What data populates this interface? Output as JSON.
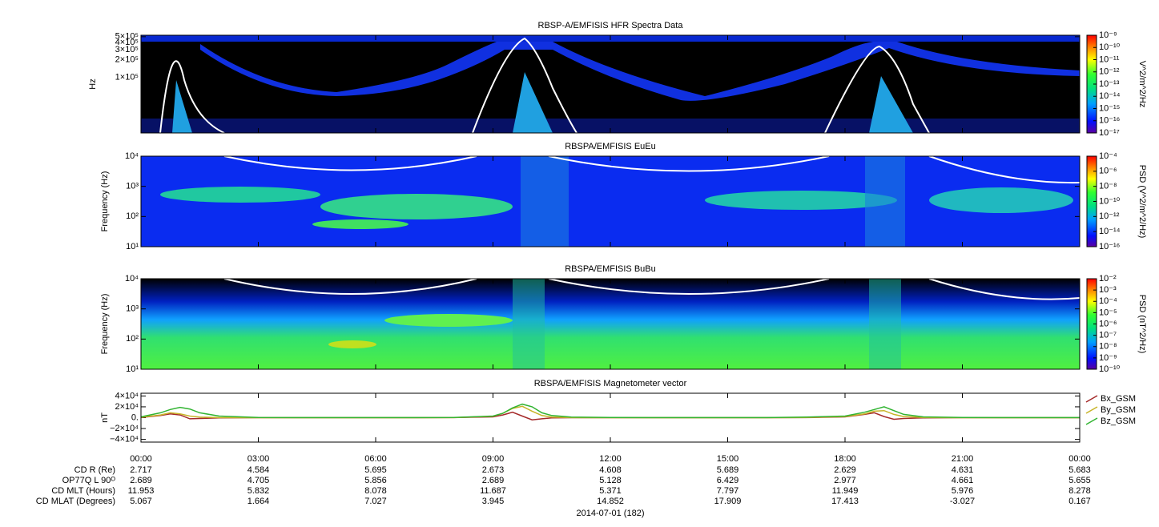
{
  "x_axis": {
    "xlim": [
      0,
      24
    ],
    "ticks": [
      {
        "value": 0,
        "label": "00:00"
      },
      {
        "value": 3,
        "label": "03:00"
      },
      {
        "value": 6,
        "label": "06:00"
      },
      {
        "value": 9,
        "label": "09:00"
      },
      {
        "value": 12,
        "label": "12:00"
      },
      {
        "value": 15,
        "label": "15:00"
      },
      {
        "value": 18,
        "label": "18:00"
      },
      {
        "value": 21,
        "label": "21:00"
      },
      {
        "value": 24,
        "label": "00:00"
      }
    ],
    "date_label": "2014-07-01 (182)"
  },
  "chart_data": [
    {
      "type": "spectrogram",
      "title": "RBSP-A/EMFISIS  HFR Spectra Data",
      "ylabel": "Hz",
      "log": true,
      "ylim": [
        11000,
        530000
      ],
      "yticks": [
        {
          "value": 100000,
          "label": "1×10⁵"
        },
        {
          "value": 200000,
          "label": "2×10⁵"
        },
        {
          "value": 300000,
          "label": "3×10⁵"
        },
        {
          "value": 400000,
          "label": "4×10⁵"
        },
        {
          "value": 500000,
          "label": "5×10⁵"
        }
      ],
      "colorbar": {
        "label": "V^2/m^2/Hz",
        "lim": [
          1e-17,
          1e-09
        ],
        "ticks": [
          {
            "value": 1e-17,
            "label": "10⁻¹⁷"
          },
          {
            "value": 1e-16,
            "label": "10⁻¹⁶"
          },
          {
            "value": 1e-15,
            "label": "10⁻¹⁵"
          },
          {
            "value": 1e-14,
            "label": "10⁻¹⁴"
          },
          {
            "value": 1e-13,
            "label": "10⁻¹³"
          },
          {
            "value": 1e-12,
            "label": "10⁻¹²"
          },
          {
            "value": 1e-11,
            "label": "10⁻¹¹"
          },
          {
            "value": 1e-10,
            "label": "10⁻¹⁰"
          },
          {
            "value": 1e-09,
            "label": "10⁻⁹"
          }
        ]
      }
    },
    {
      "type": "spectrogram",
      "title": "RBSPA/EMFISIS  EuEu",
      "ylabel": "Frequency (Hz)",
      "log": true,
      "ylim": [
        10,
        10000
      ],
      "yticks": [
        {
          "value": 10,
          "label": "10¹"
        },
        {
          "value": 100,
          "label": "10²"
        },
        {
          "value": 1000,
          "label": "10³"
        },
        {
          "value": 10000,
          "label": "10⁴"
        }
      ],
      "colorbar": {
        "label": "PSD (V^2/m^2/Hz)",
        "lim": [
          1e-16,
          0.0001
        ],
        "ticks": [
          {
            "value": 1e-16,
            "label": "10⁻¹⁶"
          },
          {
            "value": 1e-14,
            "label": "10⁻¹⁴"
          },
          {
            "value": 1e-12,
            "label": "10⁻¹²"
          },
          {
            "value": 1e-10,
            "label": "10⁻¹⁰"
          },
          {
            "value": 1e-08,
            "label": "10⁻⁸"
          },
          {
            "value": 1e-06,
            "label": "10⁻⁶"
          },
          {
            "value": 0.0001,
            "label": "10⁻⁴"
          }
        ]
      }
    },
    {
      "type": "spectrogram",
      "title": "RBSPA/EMFISIS  BuBu",
      "ylabel": "Frequency (Hz)",
      "log": true,
      "ylim": [
        10,
        10000
      ],
      "yticks": [
        {
          "value": 10,
          "label": "10¹"
        },
        {
          "value": 100,
          "label": "10²"
        },
        {
          "value": 1000,
          "label": "10³"
        },
        {
          "value": 10000,
          "label": "10⁴"
        }
      ],
      "colorbar": {
        "label": "PSD (nT^2/Hz)",
        "lim": [
          1e-10,
          0.01
        ],
        "ticks": [
          {
            "value": 1e-10,
            "label": "10⁻¹⁰"
          },
          {
            "value": 1e-09,
            "label": "10⁻⁹"
          },
          {
            "value": 1e-08,
            "label": "10⁻⁸"
          },
          {
            "value": 1e-07,
            "label": "10⁻⁷"
          },
          {
            "value": 1e-06,
            "label": "10⁻⁶"
          },
          {
            "value": 1e-05,
            "label": "10⁻⁵"
          },
          {
            "value": 0.0001,
            "label": "10⁻⁴"
          },
          {
            "value": 0.001,
            "label": "10⁻³"
          },
          {
            "value": 0.01,
            "label": "10⁻²"
          }
        ]
      }
    },
    {
      "type": "line",
      "title": "RBSPA/EMFISIS  Magnetometer vector",
      "ylabel": "nT",
      "log": false,
      "ylim": [
        -45000,
        45000
      ],
      "yticks": [
        {
          "value": 40000,
          "label": "4×10⁴"
        },
        {
          "value": 20000,
          "label": "2×10⁴"
        },
        {
          "value": 0,
          "label": "0."
        },
        {
          "value": -20000,
          "label": "−2×10⁴"
        },
        {
          "value": -40000,
          "label": "−4×10⁴"
        }
      ],
      "legend": "right",
      "x": [
        0,
        0.5,
        0.75,
        1,
        1.25,
        1.5,
        2,
        3,
        4,
        5,
        6,
        7,
        8,
        9,
        9.25,
        9.5,
        9.75,
        10,
        10.25,
        10.5,
        11,
        12,
        13,
        14,
        15,
        16,
        17,
        18,
        18.5,
        18.75,
        19,
        19.25,
        19.5,
        20,
        21,
        22,
        23,
        24
      ],
      "series": [
        {
          "name": "Bx_GSM",
          "color": "#a52a2a",
          "values": [
            500,
            4000,
            7000,
            5000,
            -2000,
            -1500,
            -300,
            0,
            0,
            0,
            0,
            0,
            100,
            1500,
            5000,
            10000,
            3000,
            -4000,
            -2000,
            -500,
            0,
            0,
            0,
            0,
            0,
            0,
            200,
            1500,
            6000,
            9000,
            2000,
            -3000,
            -1500,
            -300,
            0,
            0,
            0,
            0
          ]
        },
        {
          "name": "By_GSM",
          "color": "#c8b428",
          "values": [
            800,
            5000,
            9000,
            7000,
            3000,
            1000,
            200,
            0,
            0,
            0,
            0,
            0,
            200,
            2500,
            8000,
            17000,
            21000,
            12000,
            4000,
            1000,
            200,
            0,
            0,
            0,
            0,
            0,
            300,
            2000,
            7000,
            12000,
            13000,
            6000,
            2000,
            400,
            0,
            0,
            0,
            0
          ]
        },
        {
          "name": "Bz_GSM",
          "color": "#32b432",
          "values": [
            1500,
            9000,
            15000,
            19000,
            16000,
            9000,
            3000,
            500,
            200,
            100,
            100,
            100,
            300,
            3000,
            8000,
            18000,
            25000,
            20000,
            9000,
            4000,
            1000,
            300,
            100,
            100,
            100,
            200,
            1000,
            3000,
            10000,
            15000,
            20000,
            13000,
            6000,
            1500,
            300,
            100,
            100,
            100
          ]
        }
      ]
    }
  ],
  "ephemeris": {
    "labels": [
      "CD R (Re)",
      "OP77Q L 90ᴼ",
      "CD MLT (Hours)",
      "CD MLAT (Degrees)"
    ],
    "rows": [
      [
        2.717,
        4.584,
        5.695,
        2.673,
        4.608,
        5.689,
        2.629,
        4.631,
        5.683
      ],
      [
        2.689,
        4.705,
        5.856,
        2.689,
        5.128,
        6.429,
        2.977,
        4.661,
        5.655
      ],
      [
        11.953,
        5.832,
        8.078,
        11.687,
        5.371,
        7.797,
        11.949,
        5.976,
        8.278
      ],
      [
        5.067,
        1.664,
        7.027,
        3.945,
        14.852,
        17.909,
        17.413,
        -3.027,
        0.167
      ]
    ]
  }
}
